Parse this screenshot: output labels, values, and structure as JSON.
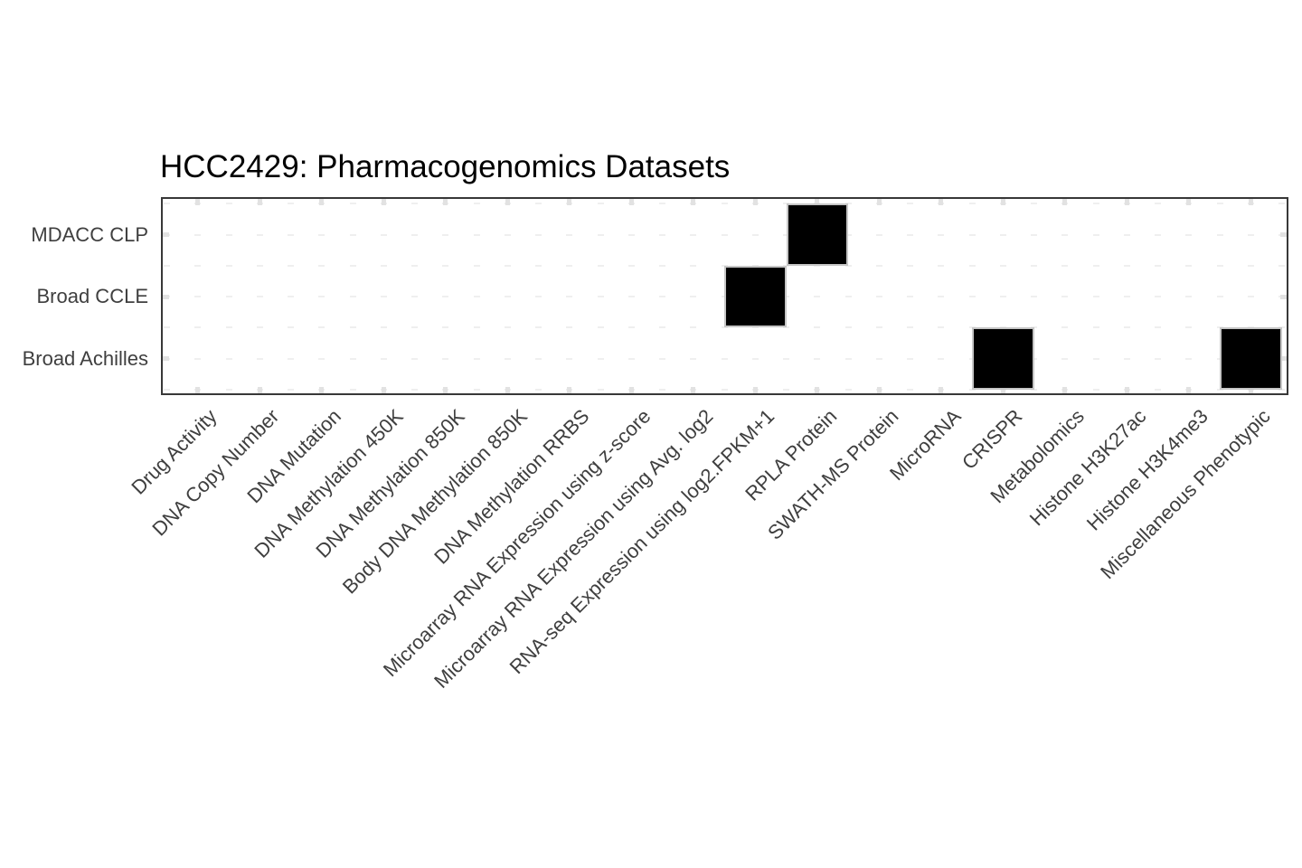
{
  "chart_data": {
    "type": "heatmap",
    "title": "HCC2429: Pharmacogenomics Datasets",
    "rows": [
      "MDACC CLP",
      "Broad CCLE",
      "Broad Achilles"
    ],
    "columns": [
      "Drug Activity",
      "DNA Copy Number",
      "DNA Mutation",
      "DNA Methylation 450K",
      "DNA Methylation 850K",
      "Body DNA Methylation 850K",
      "DNA Methylation RRBS",
      "Microarray RNA Expression using z-score",
      "Microarray RNA Expression using Avg. log2",
      "RNA-seq Expression using log2.FPKM+1",
      "RPLA Protein",
      "SWATH-MS Protein",
      "MicroRNA",
      "CRISPR",
      "Metabolomics",
      "Histone H3K27ac",
      "Histone H3K4me3",
      "Miscellaneous Phenotypic"
    ],
    "marks": [
      {
        "row": "MDACC CLP",
        "column": "RPLA Protein",
        "value": 1
      },
      {
        "row": "Broad CCLE",
        "column": "RNA-seq Expression using log2.FPKM+1",
        "value": 1
      },
      {
        "row": "Broad Achilles",
        "column": "CRISPR",
        "value": 1
      },
      {
        "row": "Broad Achilles",
        "column": "Miscellaneous Phenotypic",
        "value": 1
      }
    ],
    "matrix": [
      [
        0,
        0,
        0,
        0,
        0,
        0,
        0,
        0,
        0,
        0,
        1,
        0,
        0,
        0,
        0,
        0,
        0,
        0
      ],
      [
        0,
        0,
        0,
        0,
        0,
        0,
        0,
        0,
        0,
        1,
        0,
        0,
        0,
        0,
        0,
        0,
        0,
        0
      ],
      [
        0,
        0,
        0,
        0,
        0,
        0,
        0,
        0,
        0,
        0,
        0,
        0,
        0,
        1,
        0,
        0,
        0,
        1
      ]
    ],
    "x_tick_rotation_deg": 45,
    "legend": "none",
    "grid": "faint-dashes",
    "colors": {
      "filled_cell": "#000000",
      "cell_border": "#c6c6c6",
      "plot_border": "#383838",
      "tick": "#e2e2e2",
      "grid_dash": "#efefef",
      "axis_label": "#3f3f3f",
      "title": "#000000",
      "background": "#ffffff"
    }
  }
}
